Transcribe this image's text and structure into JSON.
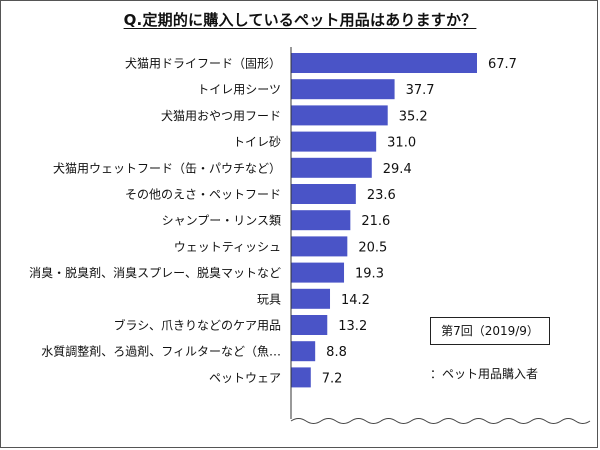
{
  "chart_data": {
    "type": "bar",
    "orientation": "horizontal",
    "title": "Q.定期的に購入しているペット用品はありますか？",
    "categories": [
      "犬猫用ドライフード（固形）",
      "トイレ用シーツ",
      "犬猫用おやつ用フード",
      "トイレ砂",
      "犬猫用ウェットフード（缶・パウチなど）",
      "その他のえさ・ペットフード",
      "シャンプー・リンス類",
      "ウェットティッシュ",
      "消臭・脱臭剤、消臭スプレー、脱臭マットなど",
      "玩具",
      "ブラシ、爪きりなどのケア用品",
      "水質調整剤、ろ過剤、フィルターなど（魚…",
      "ペットウェア"
    ],
    "values": [
      67.7,
      37.7,
      35.2,
      31.0,
      29.4,
      23.6,
      21.6,
      20.5,
      19.3,
      14.2,
      13.2,
      8.8,
      7.2
    ],
    "value_labels": [
      "67.7",
      "37.7",
      "35.2",
      "31.0",
      "29.4",
      "23.6",
      "21.6",
      "20.5",
      "19.3",
      "14.2",
      "13.2",
      "8.8",
      "7.2"
    ],
    "xlim": [
      0,
      70
    ],
    "bar_color": "#4a54c7",
    "grid": false,
    "legend_box": "第7回（2019/9）",
    "note": "：ペット用品購入者"
  }
}
